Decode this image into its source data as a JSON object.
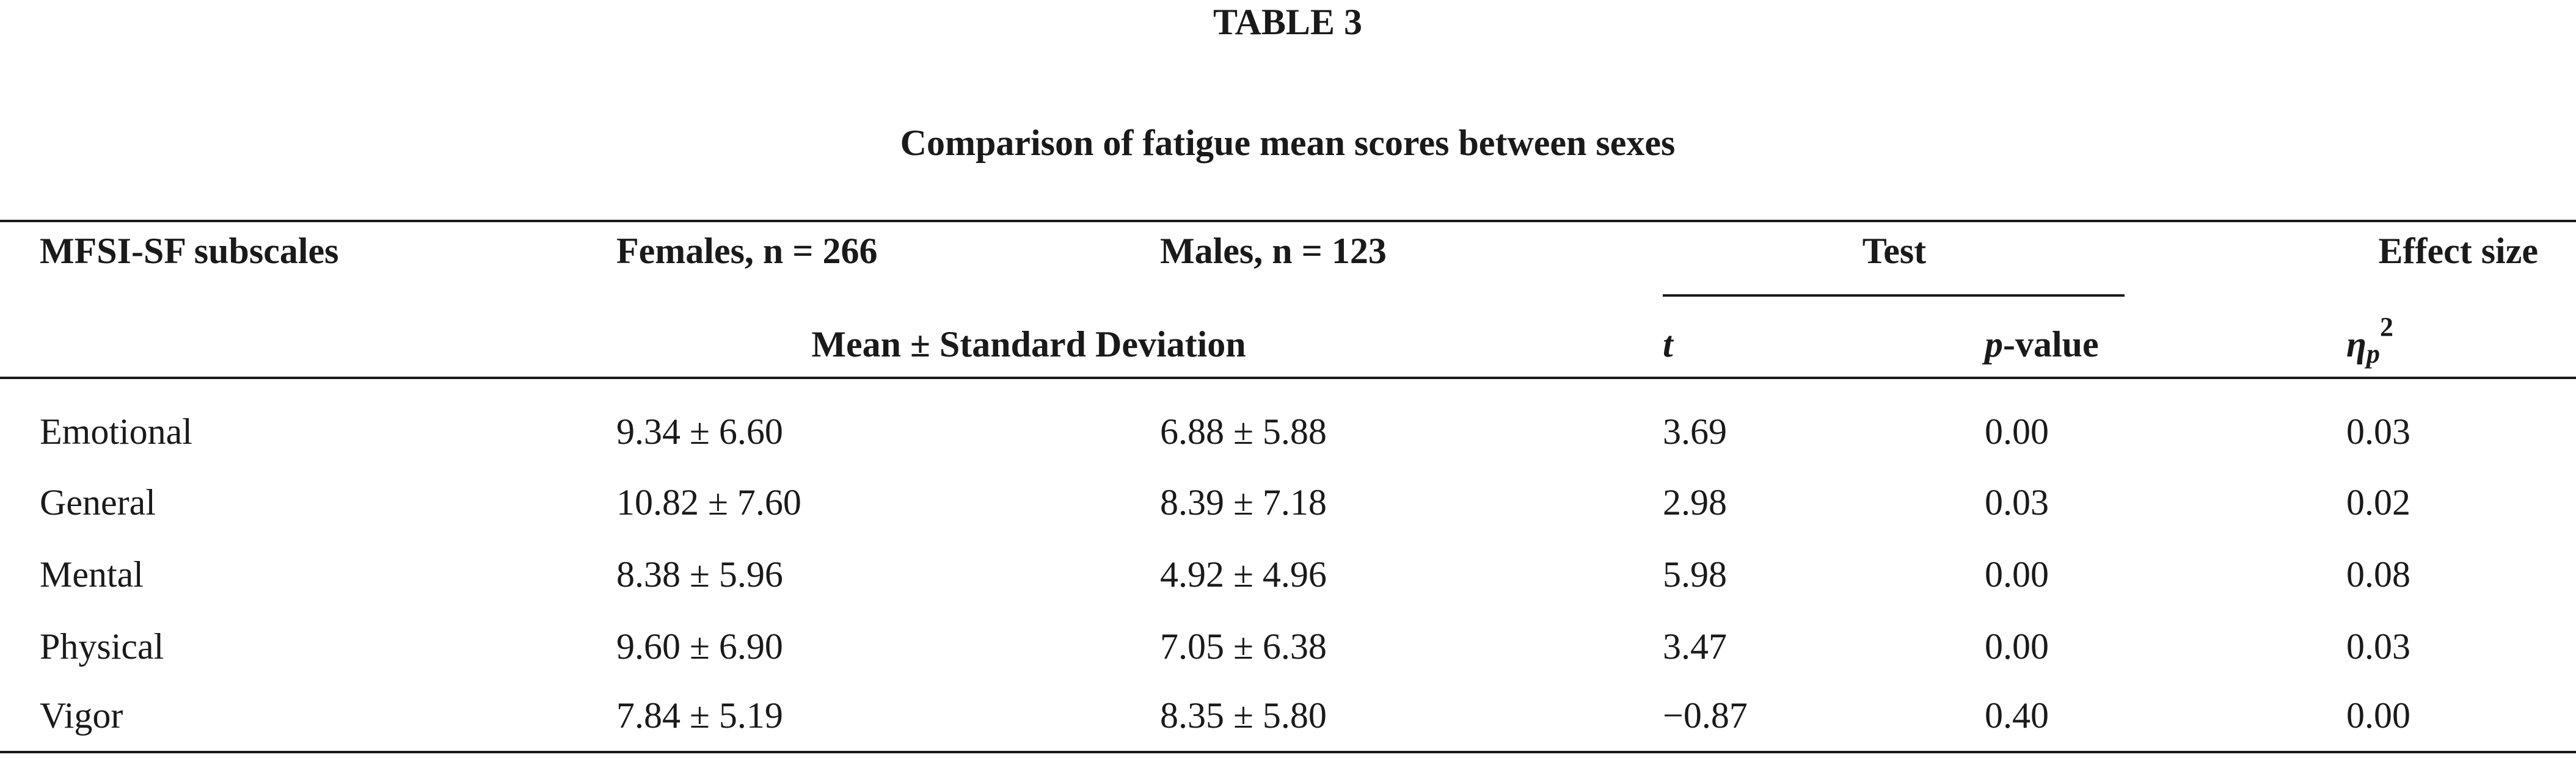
{
  "title": "TABLE 3",
  "subtitle": "Comparison of fatigue mean scores between sexes",
  "table": {
    "header": {
      "subscales": "MFSI-SF subscales",
      "females": "Females, n = 266",
      "males": "Males, n = 123",
      "test": "Test",
      "effect": "Effect size",
      "mean_sd": "Mean ± Standard Deviation",
      "t": "t",
      "p_value": {
        "italic": "p",
        "rest": "-value"
      },
      "eta": {
        "symbol": "η",
        "subscript": "p",
        "superscript": "2"
      }
    },
    "rows": [
      [
        "Emotional",
        "9.34 ± 6.60",
        "6.88 ± 5.88",
        "3.69",
        "0.00",
        "0.03"
      ],
      [
        "General",
        "10.82 ± 7.60",
        "8.39 ± 7.18",
        "2.98",
        "0.03",
        "0.02"
      ],
      [
        "Mental",
        "8.38 ± 5.96",
        "4.92 ± 4.96",
        "5.98",
        "0.00",
        "0.08"
      ],
      [
        "Physical",
        "9.60 ± 6.90",
        "7.05 ± 6.38",
        "3.47",
        "0.00",
        "0.03"
      ],
      [
        "Vigor",
        "7.84 ± 5.19",
        "8.35 ± 5.80",
        "−0.87",
        "0.40",
        "0.00"
      ]
    ]
  }
}
